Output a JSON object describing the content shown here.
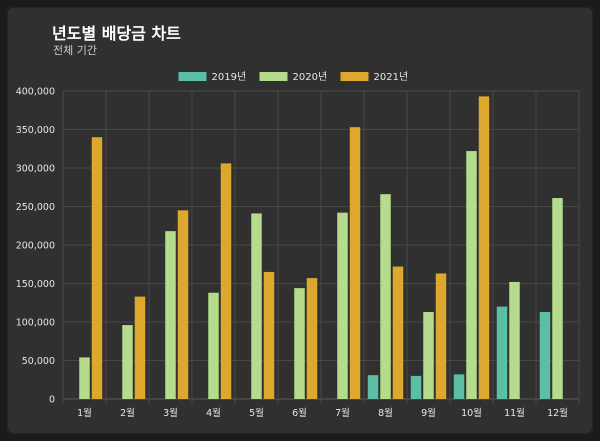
{
  "page": {
    "title": "년도별 배당금 차트",
    "subtitle": "전체 기간"
  },
  "chart_data": {
    "type": "bar",
    "title": "년도별 배당금 차트",
    "subtitle": "전체 기간",
    "categories": [
      "1월",
      "2월",
      "3월",
      "4월",
      "5월",
      "6월",
      "7월",
      "8월",
      "9월",
      "10월",
      "11월",
      "12월"
    ],
    "series": [
      {
        "name": "2019년",
        "color": "#5bbfa5",
        "values": [
          0,
          0,
          0,
          0,
          0,
          0,
          0,
          31000,
          30000,
          32000,
          120000,
          113000
        ]
      },
      {
        "name": "2020년",
        "color": "#b4dc8c",
        "values": [
          54000,
          96000,
          218000,
          138000,
          241000,
          144000,
          242000,
          266000,
          113000,
          322000,
          152000,
          261000
        ]
      },
      {
        "name": "2021년",
        "color": "#dca82e",
        "values": [
          340000,
          133000,
          245000,
          306000,
          165000,
          157000,
          353000,
          172000,
          163000,
          393000,
          0,
          0
        ]
      }
    ],
    "ylim": [
      0,
      400000
    ],
    "yticks": [
      "0",
      "50,000",
      "100,000",
      "150,000",
      "200,000",
      "250,000",
      "300,000",
      "350,000",
      "400,000"
    ],
    "grid": true,
    "legend": "top-center"
  }
}
